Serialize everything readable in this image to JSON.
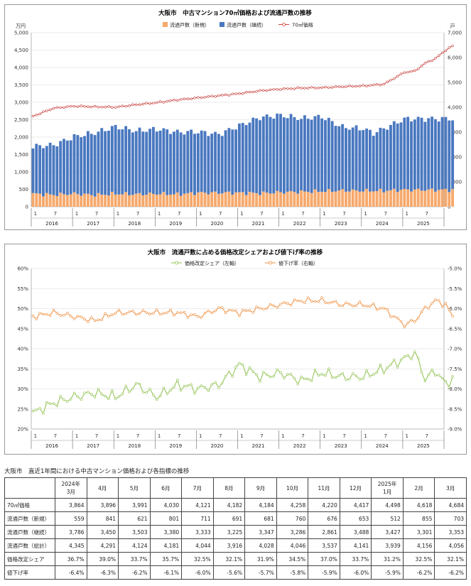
{
  "chart_data": [
    {
      "type": "bar+line",
      "title": "大阪市　中古マンション70㎡価格および流通戸数の推移",
      "left_unit": "万円",
      "right_unit": "戸",
      "x_start": "2016-01",
      "x_end": "2025-03",
      "x_tick_months": [
        "1",
        "7"
      ],
      "years": [
        "2016",
        "2017",
        "2018",
        "2019",
        "2020",
        "2021",
        "2022",
        "2023",
        "2024",
        "2025"
      ],
      "left_axis": {
        "min": 0,
        "max": 5000,
        "step": 500
      },
      "right_axis": {
        "min": 0,
        "max": 7000,
        "step": 1000
      },
      "grid": true,
      "legend_position": "top",
      "colors": {
        "new_listings": "#f6a96c",
        "continued_listings": "#4a78c0",
        "price": "#c8403c"
      },
      "series": [
        {
          "name": "流通戸数（新規）",
          "axis": "right",
          "anchors": [
            [
              0,
              520
            ],
            [
              6,
              480
            ],
            [
              12,
              520
            ],
            [
              18,
              470
            ],
            [
              24,
              520
            ],
            [
              30,
              500
            ],
            [
              36,
              520
            ],
            [
              42,
              500
            ],
            [
              48,
              560
            ],
            [
              54,
              560
            ],
            [
              60,
              560
            ],
            [
              66,
              540
            ],
            [
              72,
              580
            ],
            [
              78,
              600
            ],
            [
              84,
              620
            ],
            [
              90,
              650
            ],
            [
              96,
              640
            ],
            [
              102,
              640
            ],
            [
              108,
              680
            ],
            [
              111,
              676
            ]
          ]
        },
        {
          "name": "流通戸数（継続）",
          "axis": "right",
          "anchors": [
            [
              0,
              1900
            ],
            [
              6,
              2000
            ],
            [
              12,
              2300
            ],
            [
              18,
              2500
            ],
            [
              24,
              2700
            ],
            [
              30,
              2550
            ],
            [
              36,
              2600
            ],
            [
              42,
              2500
            ],
            [
              48,
              2450
            ],
            [
              54,
              2350
            ],
            [
              60,
              2700
            ],
            [
              66,
              3050
            ],
            [
              72,
              3100
            ],
            [
              78,
              2950
            ],
            [
              84,
              3000
            ],
            [
              90,
              2550
            ],
            [
              96,
              2500
            ],
            [
              99,
              2320
            ],
            [
              102,
              2500
            ],
            [
              108,
              2850
            ],
            [
              111,
              2861
            ]
          ]
        },
        {
          "name": "70㎡価格",
          "axis": "left",
          "anchors": [
            [
              0,
              2600
            ],
            [
              6,
              2830
            ],
            [
              12,
              2890
            ],
            [
              18,
              2870
            ],
            [
              24,
              2860
            ],
            [
              30,
              2930
            ],
            [
              36,
              2990
            ],
            [
              42,
              3070
            ],
            [
              48,
              3130
            ],
            [
              54,
              3190
            ],
            [
              60,
              3250
            ],
            [
              66,
              3330
            ],
            [
              72,
              3380
            ],
            [
              78,
              3410
            ],
            [
              84,
              3420
            ],
            [
              90,
              3450
            ],
            [
              96,
              3470
            ],
            [
              102,
              3520
            ],
            [
              108,
              3860
            ],
            [
              111,
              3896
            ],
            [
              114,
              4121
            ],
            [
              117,
              4258
            ],
            [
              120,
              4498
            ],
            [
              122,
              4618
            ],
            [
              123,
              4684
            ]
          ]
        }
      ]
    },
    {
      "type": "line",
      "title": "大阪市　流通戸数に占める価格改定シェアおよび値下げ率の推移",
      "x_start": "2016-01",
      "x_end": "2025-03",
      "x_tick_months": [
        "1",
        "7"
      ],
      "years": [
        "2016",
        "2017",
        "2018",
        "2019",
        "2020",
        "2021",
        "2022",
        "2023",
        "2024",
        "2025"
      ],
      "left_axis": {
        "min": 20,
        "max": 60,
        "step": 5,
        "unit": "%"
      },
      "right_axis": {
        "min": -9.0,
        "max": -5.0,
        "step": 0.5,
        "unit": "%"
      },
      "grid": true,
      "legend_position": "top",
      "colors": {
        "share": "#8cc04a",
        "cut_rate": "#ee8c3a"
      },
      "series": [
        {
          "name": "価格改定シェア（左軸）",
          "axis": "left",
          "anchors": [
            [
              0,
              24
            ],
            [
              6,
              26.5
            ],
            [
              12,
              28
            ],
            [
              18,
              29
            ],
            [
              24,
              28
            ],
            [
              30,
              31
            ],
            [
              36,
              28
            ],
            [
              42,
              31
            ],
            [
              48,
              30
            ],
            [
              54,
              31
            ],
            [
              60,
              36
            ],
            [
              66,
              33
            ],
            [
              72,
              34
            ],
            [
              78,
              32
            ],
            [
              84,
              34
            ],
            [
              90,
              33
            ],
            [
              96,
              33
            ],
            [
              102,
              35
            ],
            [
              108,
              37.5
            ],
            [
              111,
              39.0
            ],
            [
              114,
              32.5
            ],
            [
              117,
              34.5
            ],
            [
              120,
              31.2
            ],
            [
              122,
              32.5
            ],
            [
              123,
              32.1
            ]
          ]
        },
        {
          "name": "値下げ率（右軸）",
          "axis": "right",
          "anchors": [
            [
              0,
              -6.2
            ],
            [
              6,
              -6.1
            ],
            [
              12,
              -6.2
            ],
            [
              18,
              -6.3
            ],
            [
              24,
              -6.1
            ],
            [
              30,
              -6.1
            ],
            [
              36,
              -6.1
            ],
            [
              42,
              -6.1
            ],
            [
              48,
              -6.2
            ],
            [
              54,
              -6.0
            ],
            [
              60,
              -6.1
            ],
            [
              66,
              -6.0
            ],
            [
              72,
              -5.9
            ],
            [
              78,
              -5.8
            ],
            [
              84,
              -5.8
            ],
            [
              90,
              -5.9
            ],
            [
              96,
              -5.9
            ],
            [
              102,
              -6.0
            ],
            [
              108,
              -6.4
            ],
            [
              111,
              -6.3
            ],
            [
              114,
              -6.0
            ],
            [
              117,
              -5.8
            ],
            [
              120,
              -5.9
            ],
            [
              122,
              -6.2
            ],
            [
              123,
              -6.2
            ]
          ]
        }
      ]
    }
  ],
  "legend": {
    "new_listings": "流通戸数（新規）",
    "continued_listings": "流通戸数（継続）",
    "price_70": "70㎡価格",
    "share": "価格改定シェア（左軸）",
    "cut_rate": "値下げ率（右軸）"
  },
  "table": {
    "title": "大阪市　直近1年間における中古マンション価格および各指標の推移",
    "year_labels": [
      "2024年",
      "",
      "",
      "",
      "",
      "",
      "",
      "",
      "",
      "",
      "2025年",
      "",
      ""
    ],
    "months": [
      "3月",
      "4月",
      "5月",
      "6月",
      "7月",
      "8月",
      "9月",
      "10月",
      "11月",
      "12月",
      "1月",
      "2月",
      "3月"
    ],
    "rows": [
      {
        "label": "70㎡価格",
        "values": [
          "3,864",
          "3,896",
          "3,991",
          "4,030",
          "4,121",
          "4,182",
          "4,184",
          "4,258",
          "4,220",
          "4,417",
          "4,498",
          "4,618",
          "4,684"
        ]
      },
      {
        "label": "流通戸数（新規）",
        "values": [
          "559",
          "841",
          "621",
          "801",
          "711",
          "691",
          "681",
          "760",
          "676",
          "653",
          "512",
          "855",
          "703"
        ]
      },
      {
        "label": "流通戸数（継続）",
        "values": [
          "3,786",
          "3,450",
          "3,503",
          "3,380",
          "3,333",
          "3,225",
          "3,347",
          "3,286",
          "2,861",
          "3,488",
          "3,427",
          "3,301",
          "3,353"
        ]
      },
      {
        "label": "流通戸数（総計）",
        "values": [
          "4,345",
          "4,291",
          "4,124",
          "4,181",
          "4,044",
          "3,916",
          "4,028",
          "4,046",
          "3,537",
          "4,141",
          "3,939",
          "4,156",
          "4,056"
        ]
      },
      {
        "label": "価格改定シェア",
        "values": [
          "36.7%",
          "39.0%",
          "33.7%",
          "35.7%",
          "32.5%",
          "32.1%",
          "31.9%",
          "34.5%",
          "37.0%",
          "33.7%",
          "31.2%",
          "32.5%",
          "32.1%"
        ]
      },
      {
        "label": "値下げ率",
        "values": [
          "-6.4%",
          "-6.3%",
          "-6.2%",
          "-6.1%",
          "-6.0%",
          "-5.6%",
          "-5.7%",
          "-5.8%",
          "-5.9%",
          "-6.0%",
          "-5.9%",
          "-6.2%",
          "-6.2%"
        ]
      }
    ]
  }
}
